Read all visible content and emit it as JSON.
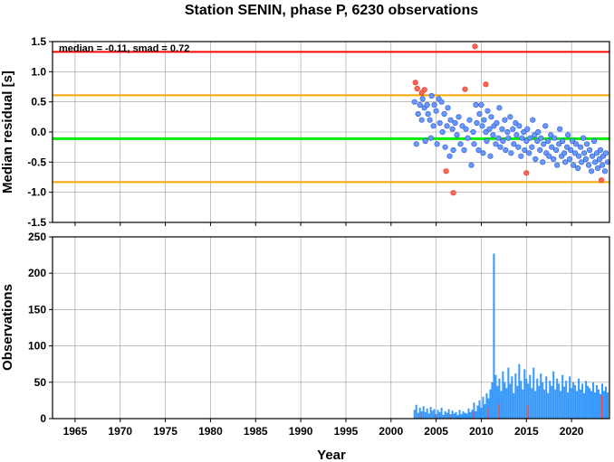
{
  "figure_title": "Station SENIN, phase P, 6230 observations",
  "colors": {
    "median_line": "#00ee00",
    "limit_outer": "#ff0000",
    "limit_inner": "#ffa500",
    "point_normal": "#6699ff",
    "point_outlier": "#ff6655",
    "bar_normal": "#3399ff",
    "bar_outlier": "#ff4444",
    "grid": "#999999"
  },
  "chart_data": [
    {
      "type": "scatter",
      "title": "Station SENIN, phase P, 6230 observations",
      "annotation": "median = -0.11, smad = 0.72",
      "xlabel": "",
      "ylabel": "Median residual [s]",
      "xlim": [
        1962.5,
        2024.2
      ],
      "ylim": [
        -1.5,
        1.5
      ],
      "x_ticks": [
        1965,
        1970,
        1975,
        1980,
        1985,
        1990,
        1995,
        2000,
        2005,
        2010,
        2015,
        2020
      ],
      "y_ticks": [
        1.5,
        1.0,
        0.5,
        0.0,
        -0.5,
        -1.0,
        -1.5
      ],
      "y_tick_labels": [
        "1.5",
        "1.0",
        "0.5",
        "0.0",
        "-0.5",
        "-1.0",
        "-1.5"
      ],
      "grid": true,
      "reference_lines": [
        {
          "y": 1.33,
          "color": "#ff0000"
        },
        {
          "y": 0.61,
          "color": "#ffa500"
        },
        {
          "y": -0.11,
          "color": "#00ee00"
        },
        {
          "y": -0.83,
          "color": "#ffa500"
        }
      ],
      "series": [
        {
          "points": [
            [
              2002.6,
              0.5
            ],
            [
              2002.8,
              -0.2
            ],
            [
              2003.0,
              0.3
            ],
            [
              2003.2,
              0.45
            ],
            [
              2003.4,
              0.2
            ],
            [
              2003.5,
              0.55
            ],
            [
              2003.7,
              0.4
            ],
            [
              2003.8,
              -0.15
            ],
            [
              2004.0,
              0.45
            ],
            [
              2004.1,
              0.3
            ],
            [
              2004.3,
              0.2
            ],
            [
              2004.4,
              -0.1
            ],
            [
              2004.5,
              0.6
            ],
            [
              2004.7,
              0.1
            ],
            [
              2004.8,
              0.45
            ],
            [
              2005.0,
              0.35
            ],
            [
              2005.1,
              -0.2
            ],
            [
              2005.3,
              0.55
            ],
            [
              2005.4,
              0.15
            ],
            [
              2005.6,
              0.5
            ],
            [
              2005.7,
              0.0
            ],
            [
              2005.9,
              0.3
            ],
            [
              2006.0,
              -0.25
            ],
            [
              2006.2,
              0.1
            ],
            [
              2006.3,
              0.4
            ],
            [
              2006.5,
              -0.4
            ],
            [
              2006.6,
              0.2
            ],
            [
              2006.8,
              0.05
            ],
            [
              2006.9,
              -0.3
            ],
            [
              2007.1,
              0.15
            ],
            [
              2007.3,
              -0.05
            ],
            [
              2007.5,
              0.25
            ],
            [
              2007.7,
              -0.2
            ],
            [
              2007.9,
              0.1
            ],
            [
              2008.1,
              -0.3
            ],
            [
              2008.3,
              0.05
            ],
            [
              2008.5,
              -0.1
            ],
            [
              2008.7,
              0.2
            ],
            [
              2008.9,
              -0.55
            ],
            [
              2009.1,
              0.0
            ],
            [
              2009.2,
              -0.2
            ],
            [
              2009.4,
              0.45
            ],
            [
              2009.5,
              0.15
            ],
            [
              2009.7,
              -0.3
            ],
            [
              2009.8,
              0.3
            ],
            [
              2010.0,
              0.45
            ],
            [
              2010.1,
              0.1
            ],
            [
              2010.2,
              -0.35
            ],
            [
              2010.3,
              0.2
            ],
            [
              2010.5,
              0.0
            ],
            [
              2010.6,
              -0.15
            ],
            [
              2010.7,
              0.35
            ],
            [
              2010.9,
              0.05
            ],
            [
              2011.0,
              -0.4
            ],
            [
              2011.1,
              0.25
            ],
            [
              2011.3,
              -0.05
            ],
            [
              2011.4,
              0.1
            ],
            [
              2011.6,
              -0.2
            ],
            [
              2011.7,
              0.15
            ],
            [
              2011.9,
              -0.1
            ],
            [
              2012.0,
              0.4
            ],
            [
              2012.1,
              -0.25
            ],
            [
              2012.3,
              0.05
            ],
            [
              2012.4,
              -0.15
            ],
            [
              2012.6,
              0.2
            ],
            [
              2012.7,
              -0.3
            ],
            [
              2012.9,
              0.0
            ],
            [
              2013.0,
              -0.1
            ],
            [
              2013.2,
              0.25
            ],
            [
              2013.3,
              -0.35
            ],
            [
              2013.5,
              0.05
            ],
            [
              2013.6,
              -0.2
            ],
            [
              2013.8,
              0.15
            ],
            [
              2013.9,
              -0.05
            ],
            [
              2014.1,
              -0.25
            ],
            [
              2014.2,
              0.1
            ],
            [
              2014.4,
              -0.4
            ],
            [
              2014.5,
              -0.1
            ],
            [
              2014.7,
              0.0
            ],
            [
              2014.8,
              -0.3
            ],
            [
              2015.0,
              -0.15
            ],
            [
              2015.1,
              0.05
            ],
            [
              2015.3,
              -0.35
            ],
            [
              2015.4,
              -0.1
            ],
            [
              2015.6,
              -0.25
            ],
            [
              2015.7,
              0.2
            ],
            [
              2015.9,
              -0.05
            ],
            [
              2016.0,
              -0.45
            ],
            [
              2016.2,
              -0.15
            ],
            [
              2016.3,
              0.0
            ],
            [
              2016.5,
              -0.3
            ],
            [
              2016.6,
              -0.1
            ],
            [
              2016.8,
              -0.5
            ],
            [
              2016.9,
              -0.2
            ],
            [
              2017.1,
              0.1
            ],
            [
              2017.2,
              -0.35
            ],
            [
              2017.4,
              -0.15
            ],
            [
              2017.5,
              -0.4
            ],
            [
              2017.7,
              -0.05
            ],
            [
              2017.8,
              -0.25
            ],
            [
              2018.0,
              -0.45
            ],
            [
              2018.1,
              -0.1
            ],
            [
              2018.3,
              -0.3
            ],
            [
              2018.4,
              -0.55
            ],
            [
              2018.6,
              -0.2
            ],
            [
              2018.7,
              0.05
            ],
            [
              2018.9,
              -0.4
            ],
            [
              2019.0,
              -0.15
            ],
            [
              2019.2,
              -0.35
            ],
            [
              2019.3,
              -0.5
            ],
            [
              2019.5,
              -0.25
            ],
            [
              2019.6,
              -0.05
            ],
            [
              2019.8,
              -0.45
            ],
            [
              2019.9,
              -0.3
            ],
            [
              2020.1,
              -0.15
            ],
            [
              2020.2,
              -0.55
            ],
            [
              2020.4,
              -0.35
            ],
            [
              2020.5,
              -0.2
            ],
            [
              2020.7,
              -0.6
            ],
            [
              2020.8,
              -0.4
            ],
            [
              2021.0,
              -0.25
            ],
            [
              2021.1,
              -0.5
            ],
            [
              2021.3,
              -0.1
            ],
            [
              2021.4,
              -0.35
            ],
            [
              2021.6,
              -0.45
            ],
            [
              2021.7,
              -0.2
            ],
            [
              2021.9,
              -0.55
            ],
            [
              2022.0,
              -0.3
            ],
            [
              2022.2,
              -0.65
            ],
            [
              2022.3,
              -0.4
            ],
            [
              2022.5,
              -0.15
            ],
            [
              2022.6,
              -0.5
            ],
            [
              2022.8,
              -0.35
            ],
            [
              2022.9,
              -0.6
            ],
            [
              2023.1,
              -0.45
            ],
            [
              2023.2,
              -0.3
            ],
            [
              2023.4,
              -0.55
            ],
            [
              2023.5,
              -0.4
            ],
            [
              2023.7,
              -0.65
            ],
            [
              2023.8,
              -0.35
            ],
            [
              2024.0,
              -0.5
            ]
          ]
        },
        {
          "outlier": true,
          "points": [
            [
              2002.7,
              0.82
            ],
            [
              2002.9,
              0.72
            ],
            [
              2003.4,
              0.65
            ],
            [
              2003.7,
              0.7
            ],
            [
              2006.1,
              -0.65
            ],
            [
              2006.9,
              -1.01
            ],
            [
              2008.2,
              0.71
            ],
            [
              2009.3,
              1.42
            ],
            [
              2010.5,
              0.79
            ],
            [
              2015.0,
              -0.68
            ],
            [
              2023.3,
              -0.8
            ]
          ]
        }
      ]
    },
    {
      "type": "bar",
      "xlabel": "Year",
      "ylabel": "Observations",
      "xlim": [
        1962.5,
        2024.2
      ],
      "ylim": [
        0,
        250
      ],
      "x_ticks": [
        1965,
        1970,
        1975,
        1980,
        1985,
        1990,
        1995,
        2000,
        2005,
        2010,
        2015,
        2020
      ],
      "y_ticks": [
        250,
        200,
        150,
        100,
        50,
        0
      ],
      "grid": true,
      "series": [
        {
          "x": [
            2002.5,
            2002.7,
            2002.9,
            2003.1,
            2003.3,
            2003.5,
            2003.7,
            2003.9,
            2004.1,
            2004.3,
            2004.5,
            2004.7,
            2004.9,
            2005.1,
            2005.3,
            2005.5,
            2005.7,
            2005.9,
            2006.1,
            2006.3,
            2006.5,
            2006.7,
            2006.9,
            2007.1,
            2007.3,
            2007.5,
            2007.7,
            2007.9,
            2008.1,
            2008.3,
            2008.5,
            2008.7,
            2008.9,
            2009.1,
            2009.3,
            2009.5,
            2009.7,
            2009.9,
            2010.1,
            2010.3,
            2010.5,
            2010.7,
            2010.9,
            2011.1,
            2011.3,
            2011.5,
            2011.7,
            2011.9,
            2012.1,
            2012.3,
            2012.5,
            2012.7,
            2012.9,
            2013.1,
            2013.3,
            2013.5,
            2013.7,
            2013.9,
            2014.1,
            2014.3,
            2014.5,
            2014.7,
            2014.9,
            2015.1,
            2015.3,
            2015.5,
            2015.7,
            2015.9,
            2016.1,
            2016.3,
            2016.5,
            2016.7,
            2016.9,
            2017.1,
            2017.3,
            2017.5,
            2017.7,
            2017.9,
            2018.1,
            2018.3,
            2018.5,
            2018.7,
            2018.9,
            2019.1,
            2019.3,
            2019.5,
            2019.7,
            2019.9,
            2020.1,
            2020.3,
            2020.5,
            2020.7,
            2020.9,
            2021.1,
            2021.3,
            2021.5,
            2021.7,
            2021.9,
            2022.1,
            2022.3,
            2022.5,
            2022.7,
            2022.9,
            2023.1,
            2023.3,
            2023.5,
            2023.7,
            2023.9
          ],
          "values": [
            12,
            19,
            8,
            15,
            10,
            17,
            9,
            14,
            7,
            16,
            11,
            13,
            6,
            12,
            9,
            15,
            5,
            10,
            8,
            13,
            6,
            11,
            7,
            9,
            5,
            12,
            6,
            10,
            8,
            7,
            14,
            9,
            12,
            22,
            10,
            18,
            25,
            15,
            30,
            20,
            35,
            28,
            40,
            50,
            227,
            60,
            45,
            55,
            38,
            65,
            50,
            42,
            70,
            48,
            58,
            35,
            62,
            45,
            75,
            52,
            40,
            68,
            55,
            48,
            60,
            42,
            70,
            38,
            55,
            45,
            62,
            50,
            40,
            58,
            35,
            52,
            45,
            65,
            40,
            55,
            48,
            38,
            60,
            44,
            52,
            36,
            58,
            42,
            50,
            46,
            38,
            55,
            40,
            48,
            35,
            52,
            45,
            42,
            38,
            50,
            36,
            46,
            40,
            34,
            48,
            38,
            44,
            36
          ]
        },
        {
          "outlier": true,
          "x": [
            2003.3,
            2004.9,
            2006.5,
            2009.1,
            2010.7,
            2011.9,
            2015.1,
            2023.3
          ],
          "values": [
            8,
            6,
            5,
            10,
            15,
            20,
            18,
            32
          ]
        }
      ]
    }
  ]
}
